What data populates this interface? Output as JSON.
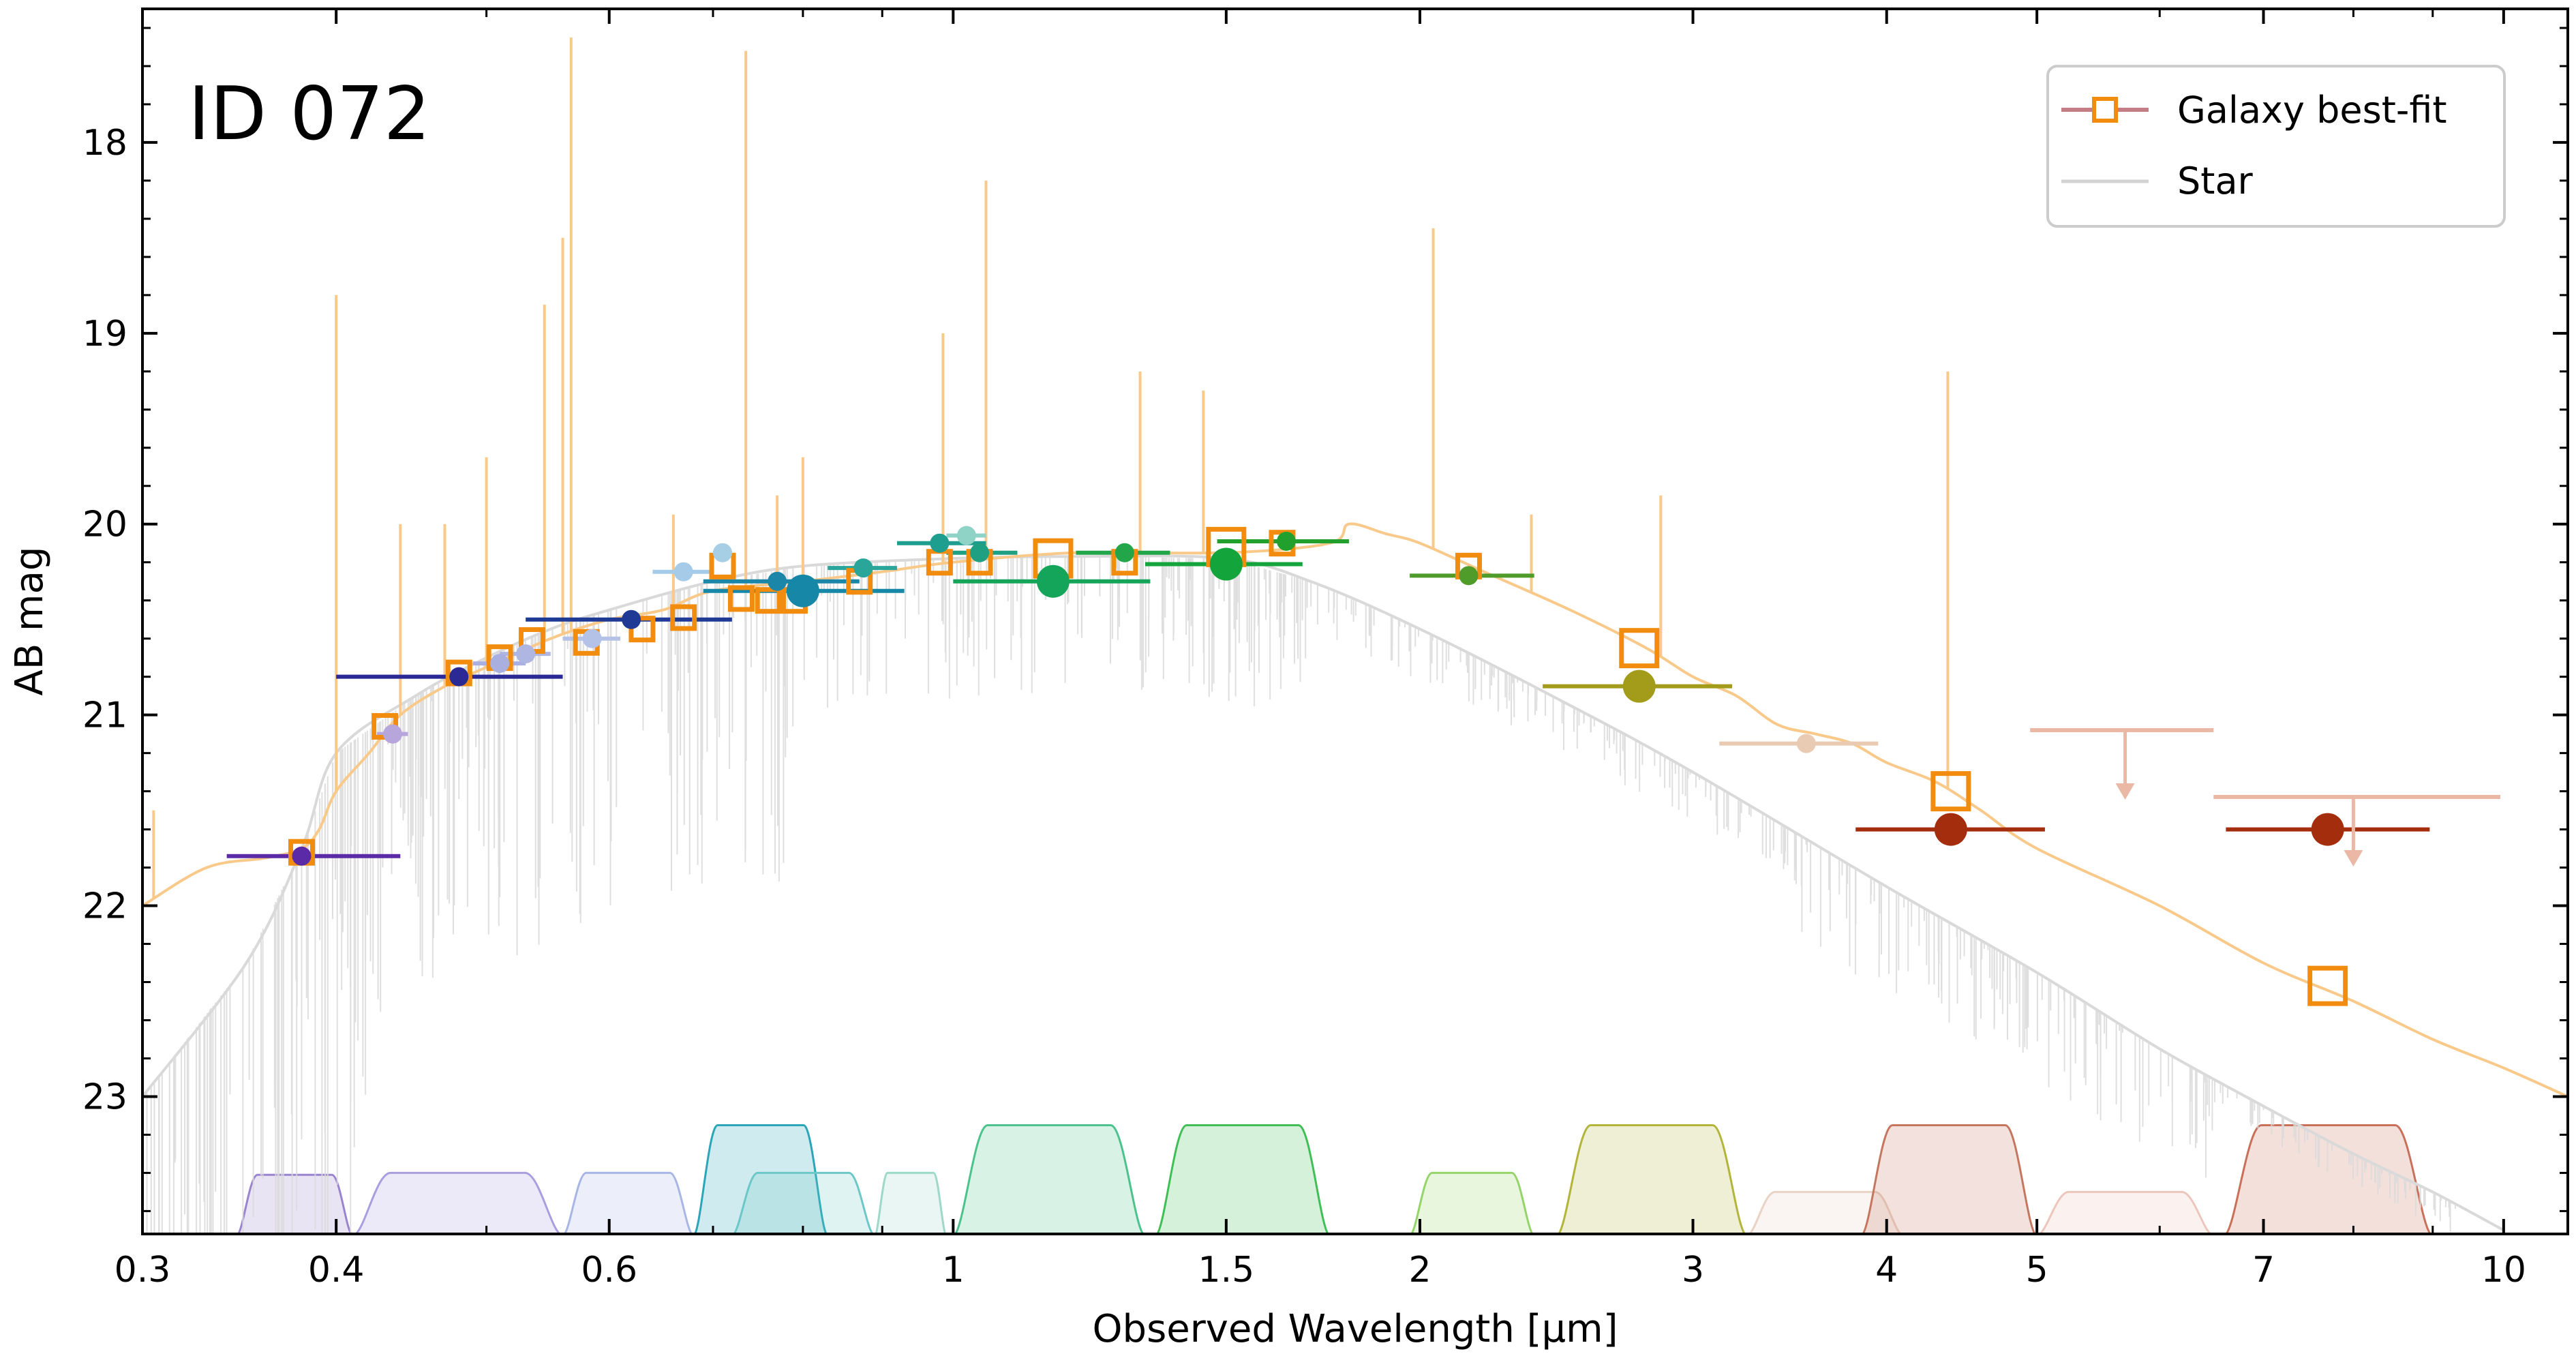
{
  "chart_data": {
    "type": "scatter",
    "title": "ID 072",
    "xlabel": "Observed Wavelength [μm]",
    "ylabel": "AB mag",
    "xscale": "log",
    "xlim": [
      0.3,
      11.0
    ],
    "ylim": [
      23.72,
      17.3
    ],
    "y_inverted": true,
    "xticks": [
      0.3,
      0.4,
      0.6,
      1,
      1.5,
      2,
      3,
      4,
      5,
      7,
      10
    ],
    "xtick_labels": [
      "0.3",
      "0.4",
      "0.6",
      "1",
      "1.5",
      "2",
      "3",
      "4",
      "5",
      "7",
      "10"
    ],
    "yticks": [
      18,
      19,
      20,
      21,
      22,
      23
    ],
    "ytick_labels": [
      "18",
      "19",
      "20",
      "21",
      "22",
      "23"
    ],
    "legend": {
      "position": "top-right",
      "entries": [
        {
          "label": "Galaxy best-fit",
          "marker": "open-square",
          "line_color": "#c47c85",
          "marker_color": "#f28c0f"
        },
        {
          "label": "Star",
          "marker": "none",
          "line_color": "#d3d3d3"
        }
      ]
    },
    "galaxy_model_curve": {
      "name": "Galaxy best-fit",
      "color": "#f9c98a",
      "x": [
        0.3,
        0.33,
        0.36,
        0.38,
        0.39,
        0.4,
        0.42,
        0.44,
        0.47,
        0.5,
        0.55,
        0.6,
        0.65,
        0.7,
        0.8,
        0.9,
        1.0,
        1.2,
        1.5,
        1.75,
        1.8,
        1.9,
        2.0,
        2.2,
        2.5,
        2.8,
        3.0,
        3.2,
        3.4,
        3.6,
        3.8,
        4.0,
        4.3,
        4.6,
        5.0,
        6.0,
        7.0,
        8.0,
        9.0,
        10.0,
        11.0
      ],
      "y": [
        22.0,
        21.8,
        21.75,
        21.7,
        21.6,
        21.4,
        21.2,
        21.0,
        20.85,
        20.75,
        20.6,
        20.5,
        20.45,
        20.35,
        20.3,
        20.25,
        20.2,
        20.15,
        20.15,
        20.1,
        20.0,
        20.05,
        20.1,
        20.25,
        20.45,
        20.65,
        20.8,
        20.9,
        21.05,
        21.1,
        21.15,
        21.25,
        21.35,
        21.5,
        21.7,
        22.0,
        22.3,
        22.5,
        22.7,
        22.85,
        23.0
      ]
    },
    "emission_lines": [
      {
        "x": 0.305,
        "top": 21.5
      },
      {
        "x": 0.4,
        "top": 18.8
      },
      {
        "x": 0.44,
        "top": 20.0
      },
      {
        "x": 0.47,
        "top": 20.0
      },
      {
        "x": 0.5,
        "top": 19.65
      },
      {
        "x": 0.545,
        "top": 18.85
      },
      {
        "x": 0.56,
        "top": 18.5
      },
      {
        "x": 0.567,
        "top": 17.45
      },
      {
        "x": 0.66,
        "top": 19.95
      },
      {
        "x": 0.735,
        "top": 17.52
      },
      {
        "x": 0.77,
        "top": 19.85
      },
      {
        "x": 0.8,
        "top": 19.65
      },
      {
        "x": 0.985,
        "top": 19.0
      },
      {
        "x": 1.05,
        "top": 18.2
      },
      {
        "x": 1.32,
        "top": 19.2
      },
      {
        "x": 1.45,
        "top": 19.3
      },
      {
        "x": 2.04,
        "top": 18.45
      },
      {
        "x": 2.36,
        "top": 19.95
      },
      {
        "x": 2.86,
        "top": 19.85
      },
      {
        "x": 4.38,
        "top": 19.2
      }
    ],
    "star_curve": {
      "name": "Star",
      "color": "#d9d9d9",
      "x": [
        0.3,
        0.35,
        0.38,
        0.4,
        0.45,
        0.5,
        0.55,
        0.6,
        0.7,
        0.8,
        1.0,
        1.2,
        1.5,
        1.7,
        2.0,
        2.5,
        3.0,
        4.0,
        5.0,
        6.0,
        7.0,
        8.0,
        9.0,
        10.0
      ],
      "y": [
        23.0,
        22.3,
        21.7,
        21.2,
        20.9,
        20.7,
        20.55,
        20.45,
        20.3,
        20.22,
        20.18,
        20.17,
        20.18,
        20.3,
        20.55,
        20.95,
        21.3,
        21.9,
        22.35,
        22.75,
        23.05,
        23.3,
        23.5,
        23.7
      ]
    },
    "model_points": {
      "name": "Galaxy best-fit",
      "marker": "open-square",
      "color": "#f28c0f",
      "points": [
        {
          "x": 0.38,
          "y": 21.72,
          "size": "small"
        },
        {
          "x": 0.43,
          "y": 21.06,
          "size": "small"
        },
        {
          "x": 0.48,
          "y": 20.78,
          "size": "small"
        },
        {
          "x": 0.51,
          "y": 20.7,
          "size": "small"
        },
        {
          "x": 0.535,
          "y": 20.61,
          "size": "small"
        },
        {
          "x": 0.58,
          "y": 20.62,
          "size": "small"
        },
        {
          "x": 0.63,
          "y": 20.55,
          "size": "small"
        },
        {
          "x": 0.67,
          "y": 20.49,
          "size": "small"
        },
        {
          "x": 0.71,
          "y": 20.22,
          "size": "small"
        },
        {
          "x": 0.73,
          "y": 20.39,
          "size": "small"
        },
        {
          "x": 0.76,
          "y": 20.4,
          "size": "small"
        },
        {
          "x": 0.79,
          "y": 20.4,
          "size": "small"
        },
        {
          "x": 0.87,
          "y": 20.3,
          "size": "small"
        },
        {
          "x": 0.98,
          "y": 20.2,
          "size": "small"
        },
        {
          "x": 1.04,
          "y": 20.2,
          "size": "small"
        },
        {
          "x": 1.16,
          "y": 20.18,
          "size": "large"
        },
        {
          "x": 1.29,
          "y": 20.2,
          "size": "small"
        },
        {
          "x": 1.5,
          "y": 20.12,
          "size": "large"
        },
        {
          "x": 1.63,
          "y": 20.1,
          "size": "small"
        },
        {
          "x": 2.15,
          "y": 20.22,
          "size": "small"
        },
        {
          "x": 2.77,
          "y": 20.65,
          "size": "large"
        },
        {
          "x": 4.4,
          "y": 21.4,
          "size": "large"
        },
        {
          "x": 7.7,
          "y": 22.42,
          "size": "large"
        }
      ]
    },
    "observed_points": {
      "points": [
        {
          "x": 0.38,
          "y": 21.74,
          "xerr": [
            0.34,
            0.44
          ],
          "color": "#5b2aa6",
          "size": "small"
        },
        {
          "x": 0.435,
          "y": 21.1,
          "xerr": [
            0.425,
            0.445
          ],
          "color": "#b6a6dc",
          "size": "small"
        },
        {
          "x": 0.48,
          "y": 20.8,
          "xerr": [
            0.4,
            0.56
          ],
          "color": "#2b2a94",
          "size": "small"
        },
        {
          "x": 0.51,
          "y": 20.73,
          "xerr": [
            0.49,
            0.53
          ],
          "color": "#a9b0e0",
          "size": "small"
        },
        {
          "x": 0.53,
          "y": 20.68,
          "xerr": [
            0.51,
            0.55
          ],
          "color": "#b0b6e2",
          "size": "small"
        },
        {
          "x": 0.585,
          "y": 20.6,
          "xerr": [
            0.56,
            0.61
          ],
          "color": "#b3c2e6",
          "size": "small"
        },
        {
          "x": 0.62,
          "y": 20.5,
          "xerr": [
            0.53,
            0.72
          ],
          "color": "#1f3a94",
          "size": "small"
        },
        {
          "x": 0.67,
          "y": 20.25,
          "xerr": [
            0.64,
            0.7
          ],
          "color": "#a6cbe8",
          "size": "small"
        },
        {
          "x": 0.71,
          "y": 20.15,
          "xerr": [
            0.7,
            0.72
          ],
          "color": "#a6cfe6",
          "size": "small"
        },
        {
          "x": 0.77,
          "y": 20.3,
          "xerr": [
            0.69,
            0.87
          ],
          "color": "#1b86a8",
          "size": "small"
        },
        {
          "x": 0.8,
          "y": 20.35,
          "xerr": [
            0.69,
            0.93
          ],
          "color": "#1787a8",
          "size": "large"
        },
        {
          "x": 0.875,
          "y": 20.23,
          "xerr": [
            0.83,
            0.92
          ],
          "color": "#2aa59a",
          "size": "small"
        },
        {
          "x": 0.98,
          "y": 20.1,
          "xerr": [
            0.92,
            1.05
          ],
          "color": "#1e9e8e",
          "size": "small"
        },
        {
          "x": 1.02,
          "y": 20.06,
          "xerr": [
            0.99,
            1.05
          ],
          "color": "#8fd3c6",
          "size": "small"
        },
        {
          "x": 1.04,
          "y": 20.15,
          "xerr": [
            0.99,
            1.1
          ],
          "color": "#1fa082",
          "size": "small"
        },
        {
          "x": 1.16,
          "y": 20.3,
          "xerr": [
            1.0,
            1.34
          ],
          "color": "#14a55a",
          "size": "large"
        },
        {
          "x": 1.29,
          "y": 20.15,
          "xerr": [
            1.2,
            1.38
          ],
          "color": "#23a54a",
          "size": "small"
        },
        {
          "x": 1.5,
          "y": 20.21,
          "xerr": [
            1.33,
            1.68
          ],
          "color": "#13a53c",
          "size": "large"
        },
        {
          "x": 1.64,
          "y": 20.09,
          "xerr": [
            1.48,
            1.8
          ],
          "color": "#22a02e",
          "size": "small"
        },
        {
          "x": 2.15,
          "y": 20.27,
          "xerr": [
            1.97,
            2.37
          ],
          "color": "#4f9c2a",
          "size": "small"
        },
        {
          "x": 2.77,
          "y": 20.85,
          "xerr": [
            2.4,
            3.18
          ],
          "color": "#a39c1a",
          "size": "large"
        },
        {
          "x": 3.55,
          "y": 21.15,
          "xerr": [
            3.12,
            3.95
          ],
          "color": "#e8cbb2",
          "size": "small"
        },
        {
          "x": 4.4,
          "y": 21.6,
          "xerr": [
            3.82,
            5.06
          ],
          "color": "#a32d0c",
          "size": "large"
        },
        {
          "x": 7.7,
          "y": 21.6,
          "xerr": [
            6.62,
            8.96
          ],
          "color": "#a32d0c",
          "size": "large"
        }
      ]
    },
    "upper_limits": [
      {
        "x": 5.7,
        "y": 21.08,
        "xerr": [
          4.95,
          6.5
        ],
        "color": "#eab8a4"
      },
      {
        "x": 8.0,
        "y": 21.43,
        "xerr": [
          6.5,
          9.95
        ],
        "color": "#eab8a4"
      }
    ],
    "filter_curves": [
      {
        "center": 0.37,
        "x0": 0.345,
        "x1": 0.41,
        "top": 23.41,
        "color": "#9a83cf"
      },
      {
        "center": 0.47,
        "x0": 0.41,
        "x1": 0.56,
        "top": 23.4,
        "color": "#a99fe0"
      },
      {
        "center": 0.62,
        "x0": 0.56,
        "x1": 0.68,
        "top": 23.4,
        "color": "#a8b6e6"
      },
      {
        "center": 0.73,
        "x0": 0.68,
        "x1": 0.83,
        "top": 23.15,
        "color": "#2aa6b8"
      },
      {
        "center": 0.79,
        "x0": 0.72,
        "x1": 0.89,
        "top": 23.4,
        "color": "#6cc7c8"
      },
      {
        "center": 0.93,
        "x0": 0.89,
        "x1": 0.99,
        "top": 23.4,
        "color": "#9dd8c8"
      },
      {
        "center": 1.15,
        "x0": 1.0,
        "x1": 1.33,
        "top": 23.15,
        "color": "#4cc28c"
      },
      {
        "center": 1.52,
        "x0": 1.35,
        "x1": 1.75,
        "top": 23.15,
        "color": "#3fbf55"
      },
      {
        "center": 2.15,
        "x0": 1.97,
        "x1": 2.37,
        "top": 23.4,
        "color": "#94d46a"
      },
      {
        "center": 2.77,
        "x0": 2.45,
        "x1": 3.25,
        "top": 23.15,
        "color": "#b2b53a"
      },
      {
        "center": 3.55,
        "x0": 3.25,
        "x1": 4.1,
        "top": 23.5,
        "color": "#e9d2c6"
      },
      {
        "center": 4.4,
        "x0": 3.85,
        "x1": 5.0,
        "top": 23.15,
        "color": "#c4775e"
      },
      {
        "center": 5.7,
        "x0": 5.0,
        "x1": 6.5,
        "top": 23.5,
        "color": "#ecc6bc"
      },
      {
        "center": 7.7,
        "x0": 6.6,
        "x1": 9.0,
        "top": 23.15,
        "color": "#c9705b"
      }
    ]
  }
}
